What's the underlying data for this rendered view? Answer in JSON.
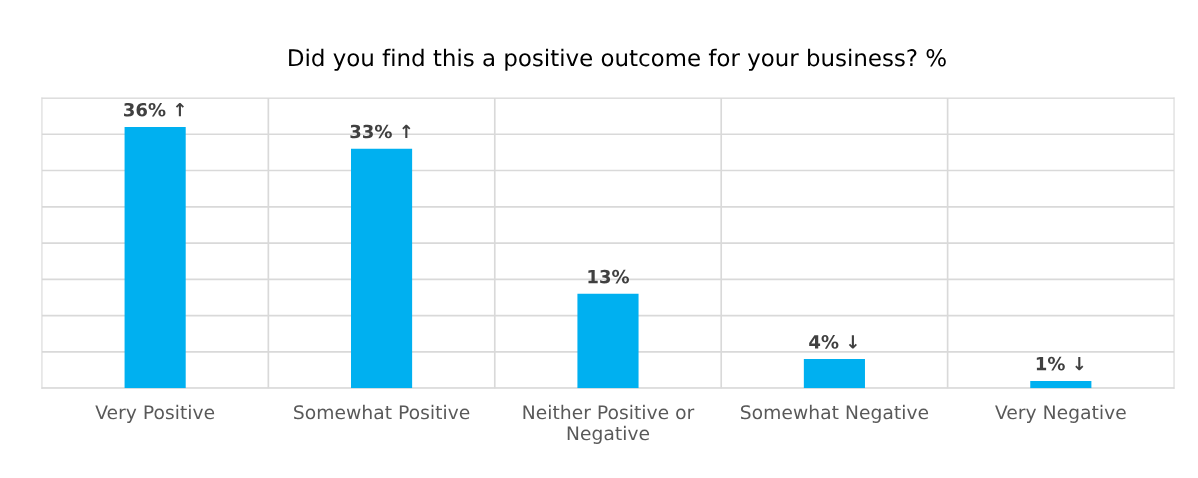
{
  "chart_data": {
    "type": "bar",
    "title": "Did you find this a positive outcome for your business? %",
    "categories": [
      "Very Positive",
      "Somewhat Positive",
      "Neither Positive or\nNegative",
      "Somewhat Negative",
      "Very Negative"
    ],
    "values": [
      36,
      33,
      13,
      4,
      1
    ],
    "value_labels": [
      "36% ↑",
      "33% ↑",
      "13%",
      "4% ↓",
      "1% ↓"
    ],
    "color": "#00b0f0",
    "ylim": [
      0,
      40
    ],
    "yticks": [
      {
        "value": 0,
        "label": null
      },
      {
        "value": 5,
        "label": null
      },
      {
        "value": 10,
        "label": null
      },
      {
        "value": 15,
        "label": null
      },
      {
        "value": 20,
        "label": null
      },
      {
        "value": 25,
        "label": null
      },
      {
        "value": 30,
        "label": null
      },
      {
        "value": 35,
        "label": null
      },
      {
        "value": 40,
        "label": null
      }
    ],
    "tick_labels": "x",
    "grid": true
  }
}
